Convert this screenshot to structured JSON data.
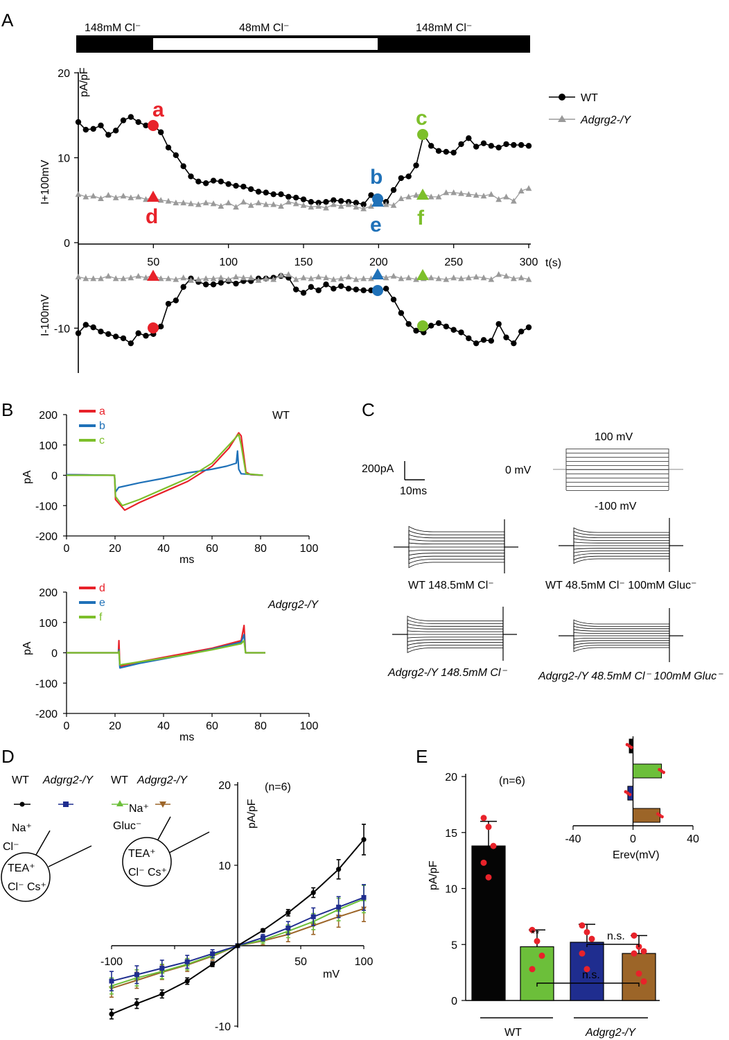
{
  "panels": {
    "A": "A",
    "B": "B",
    "C": "C",
    "D": "D",
    "E": "E"
  },
  "panel_a": {
    "bar_labels": {
      "left": "148mM Cl⁻",
      "middle": "48mM Cl⁻",
      "right": "148mM Cl⁻"
    },
    "ylabel_top": "pA/pF",
    "ylabel_plus": "I+100mV",
    "ylabel_minus": "I-100mV",
    "x_unit": "t(s)",
    "legend_wt": "WT",
    "legend_ko": "Adgrg2-/Y",
    "marker_letters": [
      "a",
      "b",
      "c",
      "d",
      "e",
      "f"
    ]
  },
  "panel_b": {
    "wt_label": "WT",
    "ko_label": "Adgrg2-/Y",
    "ylabel": "pA",
    "xlabel": "ms",
    "legend_top": [
      "a",
      "b",
      "c"
    ],
    "legend_bottom": [
      "d",
      "e",
      "f"
    ]
  },
  "panel_c": {
    "scale_current": "200pA",
    "scale_time": "10ms",
    "v_top": "100 mV",
    "v_mid": "0 mV",
    "v_bottom": "-100 mV",
    "trace_labels": [
      "WT  148.5mM Cl⁻",
      "WT  48.5mM Cl⁻  100mM Gluc⁻",
      "Adgrg2-/Y 148.5mM Cl⁻",
      "Adgrg2-/Y 48.5mM Cl⁻ 100mM Gluc⁻"
    ]
  },
  "panel_d": {
    "legend_wt1": "WT",
    "legend_ko1": "Adgrg2-/Y",
    "legend_wt2": "WT",
    "legend_ko2": "Adgrg2-/Y",
    "cell1_out": [
      "Na⁺",
      "Cl⁻"
    ],
    "cell1_in": [
      "TEA⁺",
      "Cl⁻ Cs⁺"
    ],
    "cell2_out": [
      "Na⁺",
      "Gluc⁻"
    ],
    "cell2_in": [
      "TEA⁺",
      "Cl⁻ Cs⁺"
    ],
    "n_label": "(n=6)",
    "ylabel": "pA/pF",
    "xlabel": "mV"
  },
  "panel_e": {
    "n_label": "(n=6)",
    "ylabel": "pA/pF",
    "inset_xlabel": "Erev(mV)",
    "sig_star": "**",
    "ns1": "n.s.",
    "ns2": "n.s.",
    "group_wt": "WT",
    "group_ko": "Adgrg2-/Y"
  },
  "colors": {
    "red": "#e8222a",
    "blue": "#1f71b8",
    "green": "#7dbf2b",
    "gray": "#9a9a9a",
    "navy": "#1f2d8f",
    "brown": "#9c6528",
    "lime": "#6cbf3a"
  },
  "chart_data": [
    {
      "id": "A-top",
      "type": "line",
      "title": "",
      "xlabel": "t(s)",
      "ylabel": "I+100mV (pA/pF)",
      "xlim": [
        0,
        300
      ],
      "ylim": [
        0,
        20
      ],
      "xticks": [
        50,
        100,
        150,
        200,
        250,
        300
      ],
      "yticks": [
        0,
        10,
        20
      ],
      "x": [
        0,
        5,
        10,
        15,
        20,
        25,
        30,
        35,
        40,
        45,
        50,
        55,
        60,
        65,
        70,
        75,
        80,
        85,
        90,
        95,
        100,
        105,
        110,
        115,
        120,
        125,
        130,
        135,
        140,
        145,
        150,
        155,
        160,
        165,
        170,
        175,
        180,
        185,
        190,
        195,
        200,
        205,
        210,
        215,
        220,
        225,
        230,
        235,
        240,
        245,
        250,
        255,
        260,
        265,
        270,
        275,
        280,
        285,
        290,
        295,
        300
      ],
      "series": [
        {
          "name": "WT",
          "values": [
            14.2,
            13.3,
            13.4,
            13.8,
            12.7,
            13.2,
            14.4,
            14.8,
            14.2,
            13.8,
            13.8,
            13.0,
            11.2,
            10.3,
            9.0,
            7.8,
            7.2,
            7.0,
            7.3,
            7.2,
            6.9,
            6.7,
            6.6,
            6.3,
            6.0,
            5.9,
            5.7,
            5.7,
            5.4,
            5.3,
            5.1,
            4.8,
            4.7,
            4.8,
            5.0,
            4.9,
            4.8,
            4.7,
            4.5,
            5.6,
            5.1,
            4.8,
            6.2,
            7.6,
            7.8,
            9.1,
            12.7,
            11.4,
            10.8,
            10.7,
            10.6,
            11.6,
            12.3,
            11.3,
            11.7,
            11.4,
            11.2,
            11.6,
            11.5,
            11.5,
            11.4
          ]
        },
        {
          "name": "Adgrg2-/Y",
          "values": [
            5.7,
            5.4,
            5.5,
            5.2,
            5.6,
            5.3,
            5.5,
            5.3,
            5.4,
            5.1,
            5.3,
            5.0,
            4.9,
            4.7,
            4.7,
            4.6,
            4.5,
            4.7,
            4.6,
            4.3,
            4.7,
            4.2,
            4.8,
            4.4,
            4.7,
            4.5,
            4.5,
            4.3,
            4.8,
            4.6,
            4.4,
            4.2,
            4.3,
            4.1,
            4.5,
            4.3,
            4.5,
            4.2,
            4.0,
            4.3,
            4.6,
            4.5,
            4.4,
            5.2,
            5.4,
            5.6,
            5.7,
            5.4,
            5.4,
            5.9,
            5.9,
            5.8,
            5.7,
            5.6,
            5.5,
            5.7,
            5.1,
            5.4,
            4.9,
            6.1,
            6.4
          ]
        }
      ],
      "annotations": [
        "a",
        "b",
        "c",
        "d",
        "e",
        "f"
      ]
    },
    {
      "id": "A-bottom",
      "type": "line",
      "title": "",
      "xlabel": "",
      "ylabel": "I-100mV (pA/pF)",
      "xlim": [
        0,
        300
      ],
      "ylim": [
        -15,
        0
      ],
      "yticks": [
        -10
      ],
      "x": [
        0,
        5,
        10,
        15,
        20,
        25,
        30,
        35,
        40,
        45,
        50,
        55,
        60,
        65,
        70,
        75,
        80,
        85,
        90,
        95,
        100,
        105,
        110,
        115,
        120,
        125,
        130,
        135,
        140,
        145,
        150,
        155,
        160,
        165,
        170,
        175,
        180,
        185,
        190,
        195,
        200,
        205,
        210,
        215,
        220,
        225,
        230,
        235,
        240,
        245,
        250,
        255,
        260,
        265,
        270,
        275,
        280,
        285,
        290,
        295,
        300
      ],
      "series": [
        {
          "name": "WT",
          "values": [
            -10.6,
            -9.6,
            -9.9,
            -10.4,
            -10.7,
            -11.0,
            -11.2,
            -11.8,
            -10.6,
            -10.9,
            -10.7,
            -9.8,
            -7.1,
            -6.7,
            -5.1,
            -4.1,
            -4.5,
            -4.8,
            -4.8,
            -4.6,
            -4.4,
            -4.7,
            -4.4,
            -4.4,
            -4.1,
            -4.1,
            -4.0,
            -3.8,
            -4.0,
            -5.4,
            -5.8,
            -5.1,
            -5.5,
            -4.8,
            -5.3,
            -5.0,
            -5.3,
            -5.4,
            -5.5,
            -5.5,
            -5.5,
            -5.3,
            -6.6,
            -8.2,
            -9.5,
            -10.3,
            -10.5,
            -9.7,
            -9.4,
            -9.8,
            -10.2,
            -10.5,
            -11.2,
            -11.8,
            -11.4,
            -11.5,
            -9.5,
            -11.1,
            -11.8,
            -10.4,
            -9.9
          ]
        },
        {
          "name": "Adgrg2-/Y",
          "values": [
            -3.9,
            -4.1,
            -4.1,
            -4.1,
            -3.8,
            -4.1,
            -4.1,
            -4.0,
            -3.8,
            -4.0,
            -3.7,
            -4.1,
            -4.1,
            -4.2,
            -4.0,
            -4.3,
            -4.2,
            -4.1,
            -4.1,
            -4.0,
            -4.2,
            -3.9,
            -4.0,
            -4.0,
            -4.3,
            -4.1,
            -4.2,
            -3.7,
            -3.6,
            -4.2,
            -4.0,
            -4.1,
            -3.9,
            -4.0,
            -4.2,
            -4.1,
            -3.9,
            -4.2,
            -4.1,
            -4.1,
            -3.7,
            -4.0,
            -3.8,
            -4.1,
            -4.0,
            -4.2,
            -4.1,
            -4.0,
            -4.1,
            -4.2,
            -4.0,
            -4.1,
            -4.0,
            -3.9,
            -4.0,
            -4.2,
            -3.6,
            -3.8,
            -4.1,
            -4.0,
            -4.2
          ]
        }
      ]
    },
    {
      "id": "B-WT",
      "type": "line",
      "xlabel": "ms",
      "ylabel": "pA",
      "xlim": [
        0,
        100
      ],
      "ylim": [
        -200,
        200
      ],
      "xticks": [
        0,
        20,
        40,
        60,
        80,
        100
      ],
      "yticks": [
        -200,
        -100,
        0,
        100,
        200
      ],
      "series": [
        {
          "name": "a",
          "color": "red",
          "points": [
            [
              0,
              2
            ],
            [
              19.8,
              0
            ],
            [
              20.2,
              -80
            ],
            [
              24,
              -115
            ],
            [
              30,
              -90
            ],
            [
              40,
              -55
            ],
            [
              50,
              -20
            ],
            [
              60,
              30
            ],
            [
              67,
              90
            ],
            [
              71,
              140
            ],
            [
              72,
              130
            ],
            [
              74,
              10
            ],
            [
              76,
              2
            ],
            [
              81,
              0
            ]
          ]
        },
        {
          "name": "b",
          "color": "blue",
          "points": [
            [
              0,
              2
            ],
            [
              19.8,
              0
            ],
            [
              20.2,
              -55
            ],
            [
              21.5,
              -40
            ],
            [
              30,
              -25
            ],
            [
              40,
              -10
            ],
            [
              50,
              8
            ],
            [
              60,
              20
            ],
            [
              66,
              30
            ],
            [
              70,
              40
            ],
            [
              70.5,
              80
            ],
            [
              71,
              20
            ],
            [
              72,
              5
            ],
            [
              81,
              0
            ]
          ]
        },
        {
          "name": "c",
          "color": "green",
          "points": [
            [
              0,
              0
            ],
            [
              19.8,
              0
            ],
            [
              20.2,
              -70
            ],
            [
              23,
              -100
            ],
            [
              30,
              -80
            ],
            [
              40,
              -45
            ],
            [
              50,
              -10
            ],
            [
              60,
              40
            ],
            [
              67,
              100
            ],
            [
              71,
              135
            ],
            [
              72,
              100
            ],
            [
              74,
              5
            ],
            [
              81,
              0
            ]
          ]
        }
      ]
    },
    {
      "id": "B-KO",
      "type": "line",
      "xlabel": "ms",
      "ylabel": "pA",
      "xlim": [
        0,
        100
      ],
      "ylim": [
        -200,
        200
      ],
      "xticks": [
        0,
        20,
        40,
        60,
        80,
        100
      ],
      "yticks": [
        -200,
        -100,
        0,
        100,
        200
      ],
      "series": [
        {
          "name": "d",
          "color": "red",
          "points": [
            [
              0,
              0
            ],
            [
              21.4,
              0
            ],
            [
              21.6,
              40
            ],
            [
              22,
              -45
            ],
            [
              30,
              -30
            ],
            [
              40,
              -15
            ],
            [
              50,
              0
            ],
            [
              60,
              15
            ],
            [
              72,
              40
            ],
            [
              73.2,
              90
            ],
            [
              73.8,
              0
            ],
            [
              82,
              0
            ]
          ]
        },
        {
          "name": "e",
          "color": "blue",
          "points": [
            [
              0,
              0
            ],
            [
              21.4,
              0
            ],
            [
              21.6,
              10
            ],
            [
              22,
              -50
            ],
            [
              30,
              -35
            ],
            [
              40,
              -20
            ],
            [
              50,
              -5
            ],
            [
              60,
              12
            ],
            [
              72,
              35
            ],
            [
              73.2,
              60
            ],
            [
              73.8,
              0
            ],
            [
              82,
              0
            ]
          ]
        },
        {
          "name": "f",
          "color": "green",
          "points": [
            [
              0,
              0
            ],
            [
              21.4,
              0
            ],
            [
              21.6,
              5
            ],
            [
              22,
              -40
            ],
            [
              30,
              -30
            ],
            [
              40,
              -18
            ],
            [
              50,
              -5
            ],
            [
              60,
              10
            ],
            [
              72,
              30
            ],
            [
              73.2,
              40
            ],
            [
              73.8,
              0
            ],
            [
              82,
              0
            ]
          ]
        }
      ]
    },
    {
      "id": "D",
      "type": "line",
      "xlabel": "mV",
      "ylabel": "pA/pF",
      "xlim": [
        -100,
        100
      ],
      "ylim": [
        -10,
        20
      ],
      "xticks": [
        -100,
        50,
        100
      ],
      "yticks": [
        -10,
        10,
        20
      ],
      "x": [
        -100,
        -80,
        -60,
        -40,
        -20,
        0,
        20,
        40,
        60,
        80,
        100
      ],
      "series": [
        {
          "name": "WT Cl-",
          "color": "black",
          "values": [
            -8.5,
            -7.2,
            -6.0,
            -4.4,
            -2.3,
            0.0,
            1.9,
            4.1,
            6.6,
            9.5,
            13.2
          ],
          "err": [
            0.6,
            0.6,
            0.5,
            0.4,
            0.3,
            0.1,
            0.2,
            0.4,
            0.6,
            1.2,
            1.9
          ]
        },
        {
          "name": "Adgrg2-/Y Cl-",
          "color": "navy",
          "values": [
            -4.4,
            -3.6,
            -2.8,
            -2.0,
            -1.0,
            0.0,
            1.0,
            2.2,
            3.6,
            4.8,
            6.0
          ],
          "err": [
            1.2,
            1.1,
            1.0,
            0.8,
            0.5,
            0.1,
            0.4,
            0.8,
            1.1,
            1.3,
            1.6
          ]
        },
        {
          "name": "WT Gluc-",
          "color": "lime",
          "values": [
            -5.0,
            -4.0,
            -3.2,
            -2.3,
            -1.2,
            0.0,
            0.7,
            1.8,
            3.0,
            4.5,
            5.8
          ],
          "err": [
            1.0,
            1.0,
            0.9,
            0.7,
            0.4,
            0.1,
            0.4,
            0.8,
            1.0,
            1.4,
            1.7
          ]
        },
        {
          "name": "Adgrg2-/Y Gluc-",
          "color": "brown",
          "values": [
            -5.3,
            -4.3,
            -3.3,
            -2.4,
            -1.3,
            0.0,
            0.6,
            1.4,
            2.5,
            3.6,
            4.6
          ],
          "err": [
            1.1,
            1.0,
            0.9,
            0.8,
            0.5,
            0.1,
            0.5,
            0.9,
            1.1,
            1.3,
            1.6
          ]
        }
      ]
    },
    {
      "id": "E",
      "type": "bar",
      "ylabel": "pA/pF",
      "ylim": [
        0,
        20
      ],
      "yticks": [
        0,
        5,
        10,
        15,
        20
      ],
      "categories": [
        "WT Cl-",
        "WT Gluc-",
        "Adgrg2-/Y Cl-",
        "Adgrg2-/Y Gluc-"
      ],
      "values": [
        13.8,
        4.8,
        5.2,
        4.2
      ],
      "err": [
        2.2,
        1.5,
        1.6,
        1.6
      ],
      "points": [
        [
          16.3,
          15.5,
          13.8,
          12.3,
          11.0
        ],
        [
          6.3,
          5.3,
          4.0,
          2.8
        ],
        [
          6.7,
          6.1,
          5.5,
          4.2,
          2.8
        ],
        [
          5.8,
          4.8,
          4.4,
          4.2,
          2.4,
          1.7
        ]
      ],
      "colors": [
        "#050505",
        "#6cbf3a",
        "#1f2d8f",
        "#9c6528"
      ]
    },
    {
      "id": "E-inset",
      "type": "bar",
      "orientation": "horizontal",
      "xlabel": "Erev(mV)",
      "xlim": [
        -40,
        40
      ],
      "xticks": [
        -40,
        0,
        40
      ],
      "categories": [
        "WT Cl-",
        "WT Gluc-",
        "Adgrg2-/Y Cl-",
        "Adgrg2-/Y Gluc-"
      ],
      "values": [
        -2.5,
        19.0,
        -3.5,
        18.0
      ],
      "colors": [
        "#050505",
        "#6cbf3a",
        "#1f2d8f",
        "#9c6528"
      ]
    }
  ]
}
